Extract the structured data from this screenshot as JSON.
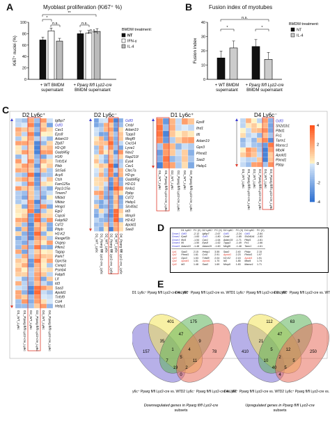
{
  "panel_letters": {
    "a": "A",
    "b": "B",
    "c": "C",
    "d": "D",
    "e": "E"
  },
  "chart_data": [
    {
      "type": "bar",
      "title": "Myoblast proliferation (Ki67⁺ %)",
      "ylabel": "Ki67⁺ nuclei (%)",
      "ylim": [
        0,
        100
      ],
      "yticks": [
        "0",
        "20",
        "40",
        "60",
        "80",
        "100"
      ],
      "groups": [
        "+ WT BMDM supernatant",
        "+ Pparg fl/fl Lyz2-cre BMDM supernatant"
      ],
      "series": [
        {
          "name": "NT",
          "values": [
            69,
            80
          ]
        },
        {
          "name": "IFN-γ",
          "values": [
            85,
            81
          ]
        },
        {
          "name": "IL-4",
          "values": [
            67,
            84
          ]
        }
      ],
      "legend_title": "BMDM treatment:",
      "significance": [
        "*",
        "n.s.",
        "**",
        "n.s.",
        "n.s."
      ]
    },
    {
      "type": "bar",
      "title": "Fusion index of myotubes",
      "ylabel": "Fusion index",
      "ylim": [
        0,
        40
      ],
      "yticks": [
        "0",
        "10",
        "20",
        "30",
        "40"
      ],
      "groups": [
        "+ WT BMDM supernatant",
        "+ Pparg fl/fl Lyz2-cre BMDM supernatant"
      ],
      "series": [
        {
          "name": "NT",
          "values": [
            15,
            23
          ]
        },
        {
          "name": "IL-4",
          "values": [
            22,
            14
          ]
        }
      ],
      "legend_title": "BMDM treatment:",
      "significance": [
        "*",
        "*",
        "n.s."
      ]
    }
  ],
  "legend_labels": {
    "nt": "NT",
    "ifn": "IFN-γ",
    "il4": "IL-4",
    "treat": "BMDM treatment:"
  },
  "group_labels": {
    "a1": "+ WT BMDM",
    "a1b": "supernatant",
    "a2": "+ Pparg fl/fl Lyz2-cre",
    "a2b": "BMDM supernatant"
  },
  "heatmaps": [
    {
      "title": "D2 Ly6c⁺",
      "genes": [
        "Igfbp7",
        "Gdf3",
        "Cav1",
        "Eps8",
        "Adam19",
        "Zfp87",
        "H2-Q8",
        "Gadd45g",
        "H1f0",
        "Tnfsf14",
        "Pbib",
        "Slc5a6",
        "Acp5",
        "Ctsh",
        "Fam125a",
        "Ppp1r15a",
        "Tmem7",
        "Nfkbid",
        "Nfkbiz",
        "Hmgcl",
        "Egr2",
        "Cops6",
        "Fabp5l2",
        "Cd72",
        "Pbpb",
        "H2-K2",
        "Rasgef1b",
        "Osgep",
        "Pfkm1",
        "Tagap",
        "Park7",
        "Gprc5a",
        "Csmp1",
        "Psmb4",
        "Fabp5",
        "Lif",
        "Id3",
        "Saa3",
        "Apold1",
        "Tnfsf9",
        "Ccl4",
        "Hebp1"
      ]
    },
    {
      "title": "D2 Ly6c⁻",
      "genes": [
        "Gdf3",
        "Cmbl",
        "Adam19",
        "Tppp3",
        "Megf9",
        "Cxcl14",
        "Lyve1",
        "Nav2",
        "Nup210l",
        "Eya4",
        "Cav1",
        "Clec7a",
        "H2-gs",
        "Gadd45g",
        "H2-D1",
        "Nr4a1",
        "Ppbp",
        "Cd72",
        "Hebp1",
        "Slc40a1",
        "Id3",
        "Mmp9",
        "H2-K2",
        "Apold1",
        "Saa3"
      ]
    },
    {
      "title": "D1 Ly6c⁺",
      "genes": [
        "Eps8",
        "Ifrd1",
        "Il6",
        "Adam19",
        "Gpx3",
        "Plxnd1",
        "Saa3",
        "Hebp1"
      ]
    },
    {
      "title": "D4 Ly6c⁻",
      "genes": [
        "Gdf3",
        "Sh2d1b1",
        "Plbd1",
        "Fn1",
        "Tarm1",
        "Mansc1",
        "Mbd4",
        "Apold1",
        "Plxnd1",
        "Pbbp"
      ]
    }
  ],
  "column_labels": [
    "D1_WT_Ly6c",
    "D1_Pparg fl/fl Lyz2-cre_Ly6c",
    "D2_WT_Ly6c",
    "D2_Pparg fl/fl Lyz2-cre_Ly6c",
    "D4_WT_Ly6c",
    "D4_Pparg fl/fl Lyz2-cre_Ly6c"
  ],
  "colorbar": {
    "ticks": [
      "4",
      "2",
      "0",
      "-2",
      "-4"
    ]
  },
  "table_d": {
    "headers": [
      "D1 Ly6C⁺",
      "FC (X)",
      "D2 Ly6C⁺",
      "FC (X)",
      "D2 Ly6C⁻",
      "FC (X)",
      "D4 Ly6C⁻",
      "FC (X)"
    ],
    "down_label": [
      "Down1",
      "Down2",
      "Down3",
      "Down4",
      "Down5"
    ],
    "up_label": [
      "Up1",
      "Up2",
      "Up3",
      "Up4",
      "Up5"
    ],
    "down": [
      [
        "Gdf3",
        "-2.12",
        "Igfbp7",
        "-2.67",
        "Gdf3",
        "-2.24",
        "Gdf3",
        "-2.84"
      ],
      [
        "Eps8",
        "-1.83",
        "Gdf3",
        "-1.80",
        "Cmbl",
        "-1.85",
        "Sh2d1b1",
        "-1.83"
      ],
      [
        "Ifrd1",
        "-1.54",
        "Cav1",
        "-1.64",
        "Adam19",
        "-1.71",
        "Plbd1",
        "-1.81"
      ],
      [
        "Il6",
        "-1.50",
        "Eps8",
        "-1.62",
        "Tppp3",
        "-1.49",
        "Fn1",
        "-1.66"
      ],
      [
        "Adam19",
        "-1.48",
        "Adam19",
        "-1.60",
        "Megf9",
        "-1.48",
        "Tarm1",
        "-1.61"
      ]
    ],
    "up": [
      [
        "Saa3",
        "2.15",
        "Hebp1",
        "3.55",
        "Saa3",
        "2.40",
        "Pbbp",
        "2.15"
      ],
      [
        "Plxnd1",
        "1.61",
        "Ccl4",
        "2.91",
        "Apold1",
        "2.23",
        "Plxnd1",
        "1.97"
      ],
      [
        "Gpx3",
        "1.53",
        "Tnfsf9",
        "2.04",
        "H2-K2",
        "2.15",
        "Apold1",
        "1.91"
      ],
      [
        "Apold1",
        "1.51",
        "Apold1",
        "1.70",
        "Id3",
        "1.85",
        "Mbd4",
        "1.74"
      ],
      [
        "Id3",
        "1.48",
        "Saa3",
        "1.69",
        "Mmp9",
        "1.83",
        "Mansc1",
        "1.71"
      ]
    ]
  },
  "venn_down": {
    "caption1": "Downregulated genes in Pparg fl/fl Lyz2-cre",
    "caption2": "subsets",
    "labels": [
      "D1 Ly6c⁺ Pparg fl/fl Lyz2-cre vs. WT",
      "D4 Ly6c⁻ Pparg fl/fl Lyz2-cre vs. WT",
      "D2 Ly6c⁺ Pparg fl/fl Lyz2-cre vs. WT",
      "D2 Ly6c⁻ Pparg fl/fl Lyz2-cre vs. WT"
    ],
    "numbers": [
      "401",
      "175",
      "157",
      "78",
      "47",
      "35",
      "9",
      "0",
      "7",
      "11",
      "1",
      "4",
      "5",
      "19",
      "2"
    ]
  },
  "venn_up": {
    "caption1": "Upregulated genes in Pparg fl/fl Lyz2-cre",
    "caption2": "subsets",
    "labels": [
      "D1 Ly6c⁺ Pparg fl/fl Lyz2-cre vs. WT",
      "D2 Ly6c⁻ Pparg fl/fl Lyz2-cre vs. WT",
      "D4 Ly6c⁻ Pparg fl/fl Lyz2-cre vs. WT",
      "D2 Ly6c⁺ Pparg fl/fl Lyz2-cre vs. WT"
    ],
    "numbers": [
      "112",
      "63",
      "410",
      "250",
      "47",
      "21",
      "3",
      "4",
      "10",
      "5",
      "5",
      "12",
      "2",
      "40",
      "5"
    ]
  }
}
